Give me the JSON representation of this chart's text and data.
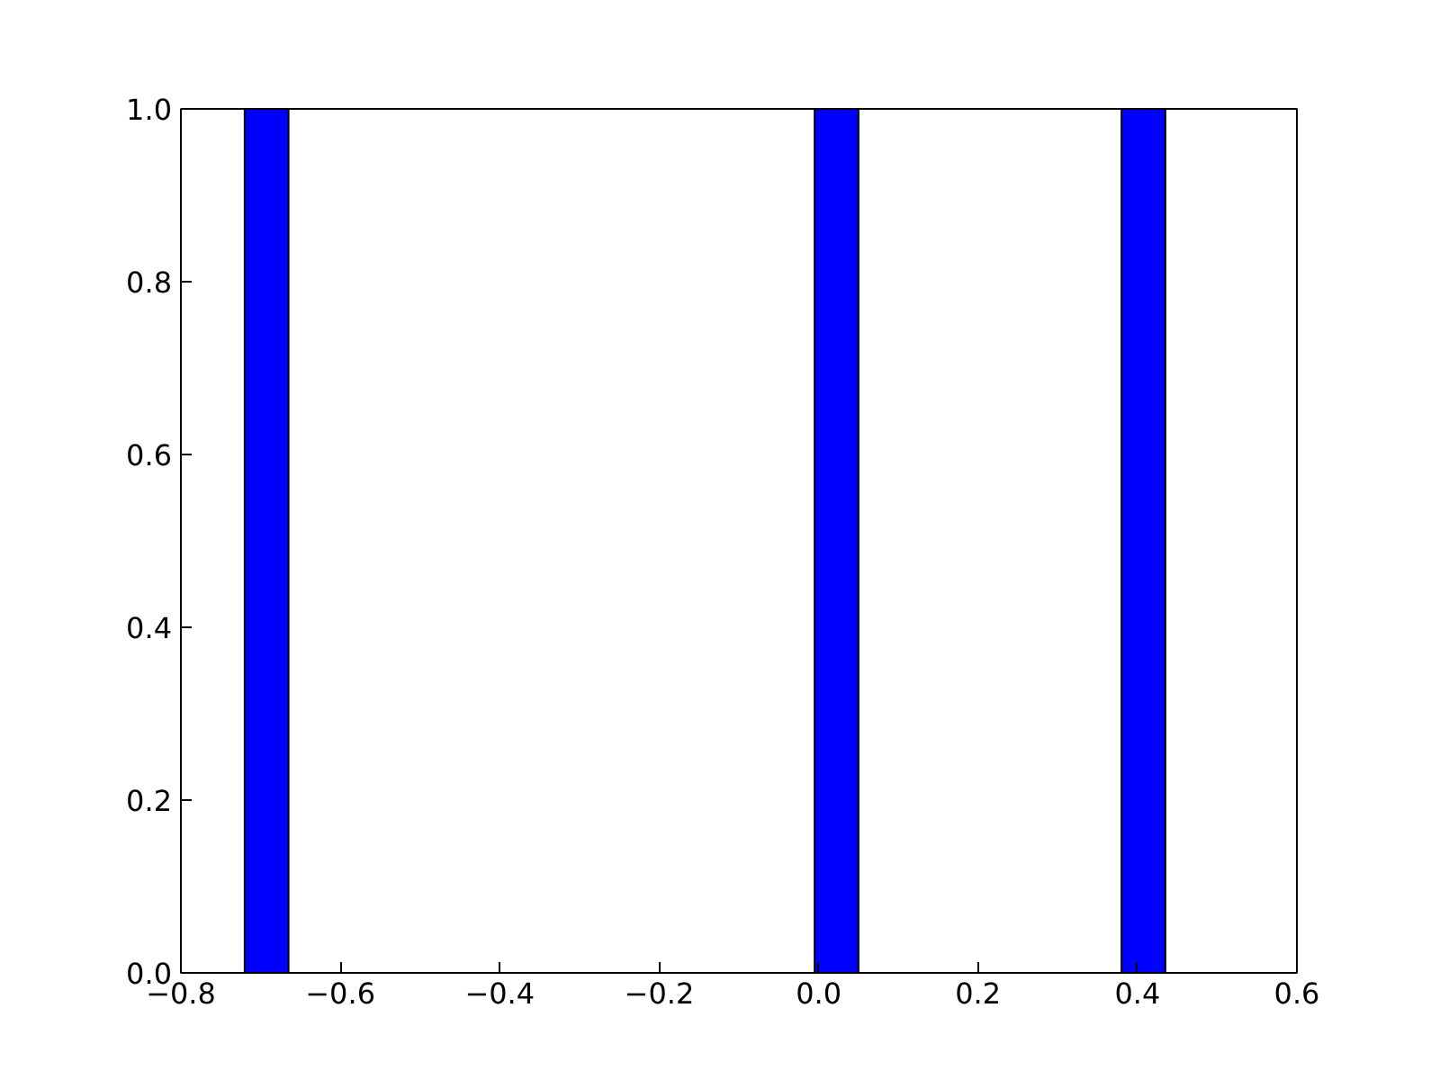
{
  "chart_data": {
    "type": "histogram",
    "color": "#0000ff",
    "bins": [
      -0.72,
      -0.665,
      -0.61,
      -0.555,
      -0.5,
      -0.445,
      -0.39,
      -0.335,
      -0.28,
      -0.225,
      -0.17,
      -0.115,
      -0.06,
      -0.005,
      0.05,
      0.105,
      0.16,
      0.215,
      0.27,
      0.325,
      0.38,
      0.435
    ],
    "values": [
      1,
      0,
      0,
      0,
      0,
      0,
      0,
      0,
      0,
      0,
      0,
      0,
      0,
      1,
      0,
      0,
      0,
      0,
      0,
      0,
      1
    ],
    "xlim": [
      -0.8,
      0.6
    ],
    "xticks": [
      {
        "value": -0.8,
        "label": "−0.8"
      },
      {
        "value": -0.6,
        "label": "−0.6"
      },
      {
        "value": -0.4,
        "label": "−0.4"
      },
      {
        "value": -0.2,
        "label": "−0.2"
      },
      {
        "value": 0,
        "label": "0.0"
      },
      {
        "value": 0.2,
        "label": "0.2"
      },
      {
        "value": 0.4,
        "label": "0.4"
      },
      {
        "value": 0.6,
        "label": "0.6"
      }
    ],
    "ylim": [
      0,
      1
    ],
    "yticks": [
      {
        "value": 0,
        "label": "0.0"
      },
      {
        "value": 0.2,
        "label": "0.2"
      },
      {
        "value": 0.4,
        "label": "0.4"
      },
      {
        "value": 0.6,
        "label": "0.6"
      },
      {
        "value": 0.8,
        "label": "0.8"
      },
      {
        "value": 1,
        "label": "1.0"
      }
    ],
    "grid": false
  }
}
